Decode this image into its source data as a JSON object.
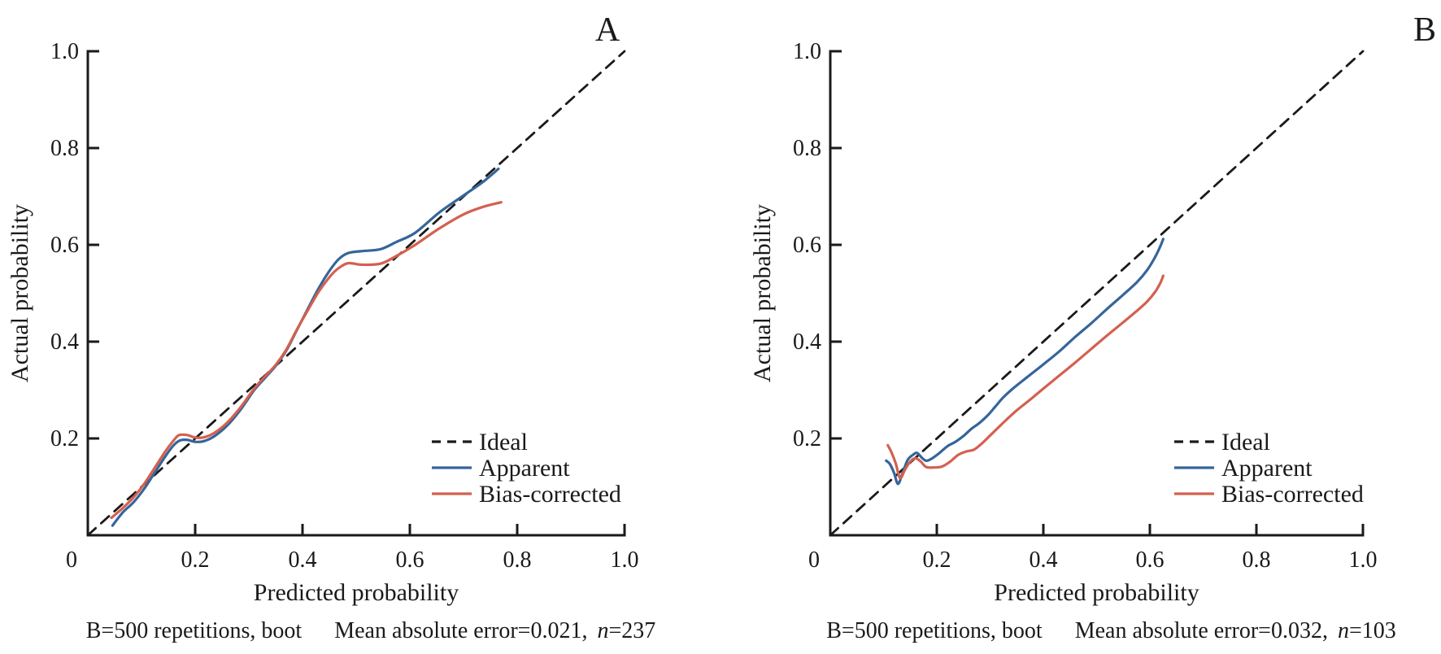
{
  "figure": {
    "background": "#ffffff",
    "text_color": "#1a1a1a",
    "axis_color": "#1a1a1a"
  },
  "chart_data": [
    {
      "type": "line",
      "panel_label": "A",
      "xlabel": "Predicted probability",
      "ylabel": "Actual probability",
      "xlim": [
        0,
        1.0
      ],
      "ylim": [
        0,
        1.0
      ],
      "grid": false,
      "legend_position": "lower right",
      "xticks": {
        "values": [
          0,
          0.2,
          0.4,
          0.6,
          0.8,
          1.0
        ],
        "labels": [
          "0",
          "0.2",
          "0.4",
          "0.6",
          "0.8",
          "1.0"
        ]
      },
      "yticks": {
        "values": [
          0.2,
          0.4,
          0.6,
          0.8,
          1.0
        ],
        "labels": [
          "0.2",
          "0.4",
          "0.6",
          "0.8",
          "1.0"
        ]
      },
      "caption": {
        "left": "B=500 repetitions, boot",
        "right_before_n": "Mean absolute error=0.021,",
        "n_italic": "n",
        "right_after_n": "=237"
      },
      "legend": [
        {
          "label": "Ideal",
          "color": "#1a1a1a",
          "dash": [
            11,
            8
          ]
        },
        {
          "label": "Apparent",
          "color": "#35659A",
          "dash": null
        },
        {
          "label": "Bias-corrected",
          "color": "#D4604F",
          "dash": null
        }
      ],
      "series": [
        {
          "name": "Ideal",
          "color": "#1a1a1a",
          "width": 2.8,
          "dash": [
            13,
            9
          ],
          "points": [
            [
              0,
              0
            ],
            [
              1.0,
              1.0
            ]
          ]
        },
        {
          "name": "Apparent",
          "color": "#35659A",
          "width": 3.2,
          "dash": null,
          "points": [
            [
              0.046,
              0.02
            ],
            [
              0.065,
              0.047
            ],
            [
              0.085,
              0.068
            ],
            [
              0.105,
              0.096
            ],
            [
              0.125,
              0.13
            ],
            [
              0.145,
              0.164
            ],
            [
              0.16,
              0.186
            ],
            [
              0.172,
              0.196
            ],
            [
              0.185,
              0.197
            ],
            [
              0.2,
              0.193
            ],
            [
              0.215,
              0.194
            ],
            [
              0.235,
              0.204
            ],
            [
              0.26,
              0.227
            ],
            [
              0.285,
              0.26
            ],
            [
              0.31,
              0.3
            ],
            [
              0.33,
              0.325
            ],
            [
              0.35,
              0.35
            ],
            [
              0.37,
              0.382
            ],
            [
              0.39,
              0.425
            ],
            [
              0.41,
              0.468
            ],
            [
              0.43,
              0.51
            ],
            [
              0.45,
              0.546
            ],
            [
              0.467,
              0.57
            ],
            [
              0.485,
              0.583
            ],
            [
              0.51,
              0.587
            ],
            [
              0.545,
              0.591
            ],
            [
              0.575,
              0.606
            ],
            [
              0.61,
              0.625
            ],
            [
              0.655,
              0.667
            ],
            [
              0.7,
              0.702
            ],
            [
              0.735,
              0.729
            ],
            [
              0.765,
              0.757
            ]
          ]
        },
        {
          "name": "Bias-corrected",
          "color": "#D4604F",
          "width": 3.2,
          "dash": null,
          "points": [
            [
              0.044,
              0.036
            ],
            [
              0.065,
              0.056
            ],
            [
              0.085,
              0.078
            ],
            [
              0.105,
              0.106
            ],
            [
              0.125,
              0.14
            ],
            [
              0.145,
              0.174
            ],
            [
              0.16,
              0.196
            ],
            [
              0.17,
              0.207
            ],
            [
              0.185,
              0.207
            ],
            [
              0.2,
              0.202
            ],
            [
              0.215,
              0.202
            ],
            [
              0.235,
              0.211
            ],
            [
              0.26,
              0.233
            ],
            [
              0.285,
              0.265
            ],
            [
              0.31,
              0.303
            ],
            [
              0.33,
              0.328
            ],
            [
              0.35,
              0.352
            ],
            [
              0.37,
              0.384
            ],
            [
              0.39,
              0.426
            ],
            [
              0.41,
              0.465
            ],
            [
              0.43,
              0.503
            ],
            [
              0.45,
              0.533
            ],
            [
              0.465,
              0.55
            ],
            [
              0.485,
              0.562
            ],
            [
              0.51,
              0.559
            ],
            [
              0.545,
              0.561
            ],
            [
              0.575,
              0.577
            ],
            [
              0.61,
              0.6
            ],
            [
              0.655,
              0.634
            ],
            [
              0.7,
              0.663
            ],
            [
              0.735,
              0.678
            ],
            [
              0.77,
              0.688
            ]
          ]
        }
      ]
    },
    {
      "type": "line",
      "panel_label": "B",
      "xlabel": "Predicted probability",
      "ylabel": "Actual probability",
      "xlim": [
        0,
        1.0
      ],
      "ylim": [
        0,
        1.0
      ],
      "grid": false,
      "legend_position": "lower right",
      "xticks": {
        "values": [
          0,
          0.2,
          0.4,
          0.6,
          0.8,
          1.0
        ],
        "labels": [
          "0",
          "0.2",
          "0.4",
          "0.6",
          "0.8",
          "1.0"
        ]
      },
      "yticks": {
        "values": [
          0.2,
          0.4,
          0.6,
          0.8,
          1.0
        ],
        "labels": [
          "0.2",
          "0.4",
          "0.6",
          "0.8",
          "1.0"
        ]
      },
      "caption": {
        "left": "B=500 repetitions, boot",
        "right_before_n": "Mean absolute error=0.032,",
        "n_italic": "n",
        "right_after_n": "=103"
      },
      "legend": [
        {
          "label": "Ideal",
          "color": "#1a1a1a",
          "dash": [
            11,
            8
          ]
        },
        {
          "label": "Apparent",
          "color": "#35659A",
          "dash": null
        },
        {
          "label": "Bias-corrected",
          "color": "#D4604F",
          "dash": null
        }
      ],
      "series": [
        {
          "name": "Ideal",
          "color": "#1a1a1a",
          "width": 2.8,
          "dash": [
            13,
            9
          ],
          "points": [
            [
              0,
              0
            ],
            [
              1.0,
              1.0
            ]
          ]
        },
        {
          "name": "Apparent",
          "color": "#35659A",
          "width": 3.2,
          "dash": null,
          "points": [
            [
              0.105,
              0.154
            ],
            [
              0.112,
              0.147
            ],
            [
              0.12,
              0.128
            ],
            [
              0.127,
              0.106
            ],
            [
              0.135,
              0.126
            ],
            [
              0.145,
              0.155
            ],
            [
              0.155,
              0.166
            ],
            [
              0.163,
              0.17
            ],
            [
              0.172,
              0.16
            ],
            [
              0.18,
              0.154
            ],
            [
              0.19,
              0.158
            ],
            [
              0.205,
              0.17
            ],
            [
              0.22,
              0.184
            ],
            [
              0.235,
              0.193
            ],
            [
              0.25,
              0.205
            ],
            [
              0.265,
              0.22
            ],
            [
              0.28,
              0.232
            ],
            [
              0.295,
              0.247
            ],
            [
              0.31,
              0.266
            ],
            [
              0.325,
              0.285
            ],
            [
              0.345,
              0.305
            ],
            [
              0.37,
              0.327
            ],
            [
              0.4,
              0.353
            ],
            [
              0.43,
              0.38
            ],
            [
              0.46,
              0.41
            ],
            [
              0.49,
              0.438
            ],
            [
              0.52,
              0.468
            ],
            [
              0.55,
              0.497
            ],
            [
              0.575,
              0.522
            ],
            [
              0.595,
              0.548
            ],
            [
              0.61,
              0.575
            ],
            [
              0.62,
              0.598
            ],
            [
              0.625,
              0.612
            ]
          ]
        },
        {
          "name": "Bias-corrected",
          "color": "#D4604F",
          "width": 3.2,
          "dash": null,
          "points": [
            [
              0.108,
              0.186
            ],
            [
              0.115,
              0.171
            ],
            [
              0.123,
              0.148
            ],
            [
              0.131,
              0.118
            ],
            [
              0.14,
              0.135
            ],
            [
              0.15,
              0.152
            ],
            [
              0.16,
              0.159
            ],
            [
              0.17,
              0.152
            ],
            [
              0.18,
              0.141
            ],
            [
              0.195,
              0.14
            ],
            [
              0.21,
              0.142
            ],
            [
              0.225,
              0.152
            ],
            [
              0.24,
              0.166
            ],
            [
              0.255,
              0.173
            ],
            [
              0.27,
              0.177
            ],
            [
              0.285,
              0.19
            ],
            [
              0.3,
              0.206
            ],
            [
              0.315,
              0.222
            ],
            [
              0.33,
              0.238
            ],
            [
              0.35,
              0.258
            ],
            [
              0.375,
              0.28
            ],
            [
              0.4,
              0.303
            ],
            [
              0.43,
              0.33
            ],
            [
              0.46,
              0.357
            ],
            [
              0.49,
              0.385
            ],
            [
              0.52,
              0.413
            ],
            [
              0.55,
              0.44
            ],
            [
              0.575,
              0.463
            ],
            [
              0.595,
              0.483
            ],
            [
              0.61,
              0.503
            ],
            [
              0.62,
              0.522
            ],
            [
              0.625,
              0.536
            ]
          ]
        }
      ]
    }
  ]
}
